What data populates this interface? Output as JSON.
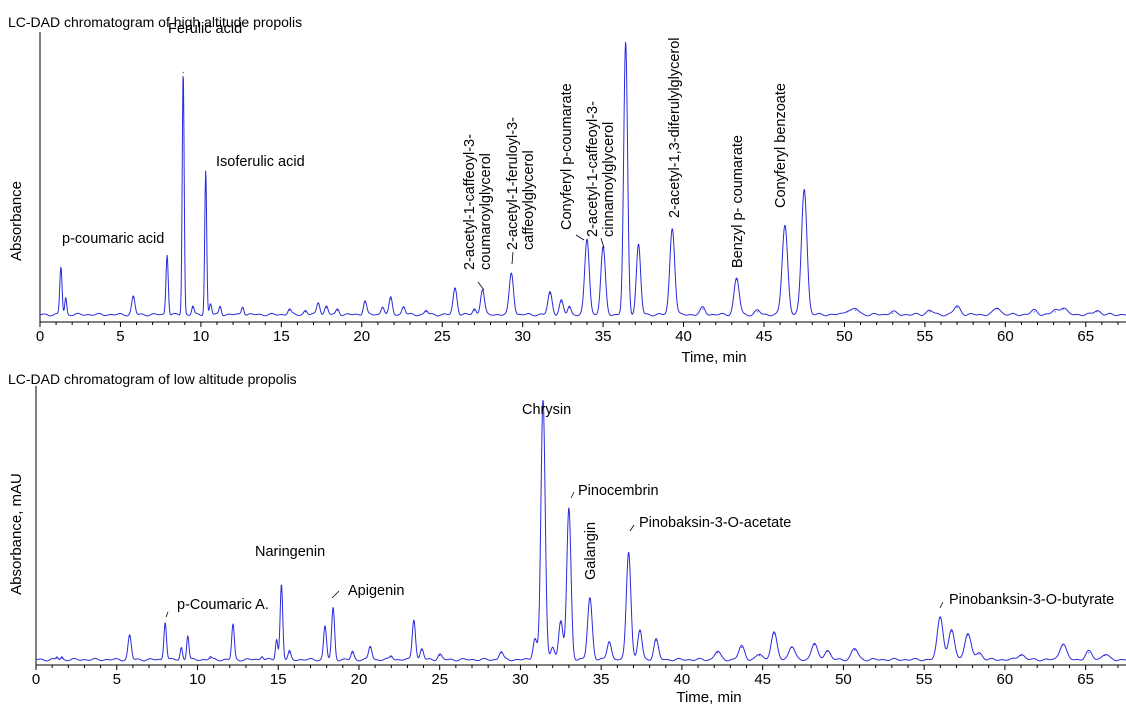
{
  "chart_data": [
    {
      "type": "line",
      "title": "LC-DAD chromatogram of high altitude propolis",
      "xlabel": "Time, min",
      "ylabel": "Absorbance",
      "xlim": [
        0,
        67.5
      ],
      "ylim": [
        0,
        100
      ],
      "x_ticks": [
        0,
        5,
        10,
        15,
        20,
        25,
        30,
        35,
        40,
        45,
        50,
        55,
        60,
        65
      ],
      "grid": false,
      "line_color": "#2b2bdc",
      "peaks": [
        {
          "x": 1.3,
          "y": 17,
          "w": 0.07
        },
        {
          "x": 1.6,
          "y": 6,
          "w": 0.06
        },
        {
          "x": 5.8,
          "y": 6.5,
          "w": 0.1
        },
        {
          "x": 7.9,
          "y": 21.5,
          "w": 0.07,
          "label": "p-coumaric acid"
        },
        {
          "x": 8.9,
          "y": 87,
          "w": 0.06,
          "label": "Ferulic acid"
        },
        {
          "x": 9.5,
          "y": 3,
          "w": 0.07
        },
        {
          "x": 10.3,
          "y": 51.5,
          "w": 0.06,
          "label": "Isoferulic acid"
        },
        {
          "x": 10.6,
          "y": 4,
          "w": 0.07
        },
        {
          "x": 11.2,
          "y": 3,
          "w": 0.07
        },
        {
          "x": 12.6,
          "y": 3,
          "w": 0.08
        },
        {
          "x": 15.5,
          "y": 2,
          "w": 0.1
        },
        {
          "x": 16.5,
          "y": 1.5,
          "w": 0.1
        },
        {
          "x": 17.3,
          "y": 4.5,
          "w": 0.1
        },
        {
          "x": 17.8,
          "y": 3,
          "w": 0.1
        },
        {
          "x": 18.5,
          "y": 2,
          "w": 0.1
        },
        {
          "x": 20.2,
          "y": 5,
          "w": 0.1
        },
        {
          "x": 21.3,
          "y": 3,
          "w": 0.1
        },
        {
          "x": 21.8,
          "y": 6,
          "w": 0.1
        },
        {
          "x": 22.6,
          "y": 3,
          "w": 0.1
        },
        {
          "x": 24.0,
          "y": 1.5,
          "w": 0.1
        },
        {
          "x": 25.8,
          "y": 9.5,
          "w": 0.12
        },
        {
          "x": 27.0,
          "y": 2,
          "w": 0.1
        },
        {
          "x": 27.5,
          "y": 9,
          "w": 0.12,
          "label": "2-acetyl-1-caffeoyl-3-coumaroylglycerol"
        },
        {
          "x": 29.3,
          "y": 15,
          "w": 0.13,
          "label": "2-acetyl-1-feruloyl-3-caffeoylglycerol"
        },
        {
          "x": 31.7,
          "y": 8,
          "w": 0.13
        },
        {
          "x": 32.4,
          "y": 5,
          "w": 0.12
        },
        {
          "x": 32.9,
          "y": 3,
          "w": 0.1
        },
        {
          "x": 34.0,
          "y": 27,
          "w": 0.14,
          "label": "Conyferyl p-coumarate"
        },
        {
          "x": 35.0,
          "y": 24,
          "w": 0.14,
          "label": "2-acetyl-1-caffeoyl-3-cinnamoylglycerol"
        },
        {
          "x": 36.4,
          "y": 97,
          "w": 0.12
        },
        {
          "x": 37.2,
          "y": 25,
          "w": 0.13
        },
        {
          "x": 39.3,
          "y": 31,
          "w": 0.15,
          "label": "2-acetyl-1,3-diferulylglycerol"
        },
        {
          "x": 41.2,
          "y": 2.5,
          "w": 0.15
        },
        {
          "x": 43.3,
          "y": 13,
          "w": 0.16,
          "label": "Benzyl p- coumarate"
        },
        {
          "x": 44.6,
          "y": 1.5,
          "w": 0.15
        },
        {
          "x": 46.3,
          "y": 32,
          "w": 0.17,
          "label": "Conyferyl benzoate"
        },
        {
          "x": 47.5,
          "y": 45,
          "w": 0.17
        },
        {
          "x": 50.2,
          "y": 1.5,
          "w": 0.2
        },
        {
          "x": 50.7,
          "y": 2,
          "w": 0.2
        },
        {
          "x": 53.0,
          "y": 1,
          "w": 0.2
        },
        {
          "x": 55.3,
          "y": 1.5,
          "w": 0.2
        },
        {
          "x": 57.0,
          "y": 3,
          "w": 0.2
        },
        {
          "x": 59.5,
          "y": 2.5,
          "w": 0.2
        },
        {
          "x": 61.8,
          "y": 1.5,
          "w": 0.2
        },
        {
          "x": 63.1,
          "y": 1.5,
          "w": 0.2
        },
        {
          "x": 63.6,
          "y": 2.5,
          "w": 0.2
        },
        {
          "x": 65.7,
          "y": 1.5,
          "w": 0.2
        }
      ]
    },
    {
      "type": "line",
      "title": "LC-DAD chromatogram of low altitude propolis",
      "xlabel": "Time, min",
      "ylabel": "Absorbance, mAU",
      "xlim": [
        0,
        67.5
      ],
      "ylim": [
        0,
        100
      ],
      "x_ticks": [
        0,
        5,
        10,
        15,
        20,
        25,
        30,
        35,
        40,
        45,
        50,
        55,
        60,
        65
      ],
      "grid": false,
      "line_color": "#2b2bdc",
      "peaks": [
        {
          "x": 1.3,
          "y": 1,
          "w": 0.06
        },
        {
          "x": 1.6,
          "y": 1,
          "w": 0.06
        },
        {
          "x": 5.8,
          "y": 9,
          "w": 0.1
        },
        {
          "x": 8.0,
          "y": 14,
          "w": 0.08,
          "label": "p-Coumaric A."
        },
        {
          "x": 9.0,
          "y": 4.5,
          "w": 0.07
        },
        {
          "x": 9.4,
          "y": 9,
          "w": 0.07
        },
        {
          "x": 10.8,
          "y": 1,
          "w": 0.08
        },
        {
          "x": 12.2,
          "y": 13,
          "w": 0.08
        },
        {
          "x": 14.0,
          "y": 1.5,
          "w": 0.08
        },
        {
          "x": 14.9,
          "y": 7.5,
          "w": 0.07
        },
        {
          "x": 15.2,
          "y": 28,
          "w": 0.08,
          "label": "Naringenin"
        },
        {
          "x": 15.7,
          "y": 3,
          "w": 0.08
        },
        {
          "x": 17.9,
          "y": 12.5,
          "w": 0.09
        },
        {
          "x": 18.4,
          "y": 19,
          "w": 0.09,
          "label": "Apigenin"
        },
        {
          "x": 19.6,
          "y": 3,
          "w": 0.09
        },
        {
          "x": 20.7,
          "y": 5,
          "w": 0.1
        },
        {
          "x": 22.0,
          "y": 1.5,
          "w": 0.1
        },
        {
          "x": 23.4,
          "y": 15,
          "w": 0.1
        },
        {
          "x": 23.9,
          "y": 4,
          "w": 0.1
        },
        {
          "x": 25.0,
          "y": 2,
          "w": 0.12
        },
        {
          "x": 28.8,
          "y": 3,
          "w": 0.12
        },
        {
          "x": 30.9,
          "y": 8,
          "w": 0.12
        },
        {
          "x": 31.4,
          "y": 96,
          "w": 0.13,
          "label": "Chrysin"
        },
        {
          "x": 32.0,
          "y": 5,
          "w": 0.12
        },
        {
          "x": 32.5,
          "y": 14,
          "w": 0.13
        },
        {
          "x": 33.0,
          "y": 56,
          "w": 0.13,
          "label": "Pinocembrin"
        },
        {
          "x": 34.3,
          "y": 23,
          "w": 0.14,
          "label": "Galangin"
        },
        {
          "x": 35.5,
          "y": 7,
          "w": 0.13
        },
        {
          "x": 36.7,
          "y": 40,
          "w": 0.14,
          "label": "Pinobaksin-3-O-acetate"
        },
        {
          "x": 37.4,
          "y": 11,
          "w": 0.13
        },
        {
          "x": 38.4,
          "y": 7.5,
          "w": 0.14
        },
        {
          "x": 42.2,
          "y": 3,
          "w": 0.18
        },
        {
          "x": 43.7,
          "y": 5,
          "w": 0.18
        },
        {
          "x": 44.8,
          "y": 2,
          "w": 0.18
        },
        {
          "x": 45.7,
          "y": 10,
          "w": 0.18
        },
        {
          "x": 46.8,
          "y": 5,
          "w": 0.18
        },
        {
          "x": 48.2,
          "y": 6,
          "w": 0.18
        },
        {
          "x": 49.0,
          "y": 3.5,
          "w": 0.18
        },
        {
          "x": 50.7,
          "y": 4,
          "w": 0.2
        },
        {
          "x": 56.0,
          "y": 16,
          "w": 0.18,
          "label": "Pinobanksin-3-O-butyrate"
        },
        {
          "x": 56.7,
          "y": 11,
          "w": 0.18
        },
        {
          "x": 57.7,
          "y": 9.5,
          "w": 0.2
        },
        {
          "x": 58.4,
          "y": 2.5,
          "w": 0.2
        },
        {
          "x": 61.0,
          "y": 2,
          "w": 0.2
        },
        {
          "x": 63.6,
          "y": 6,
          "w": 0.2
        },
        {
          "x": 65.2,
          "y": 3,
          "w": 0.2
        },
        {
          "x": 66.2,
          "y": 2,
          "w": 0.2
        }
      ]
    }
  ]
}
